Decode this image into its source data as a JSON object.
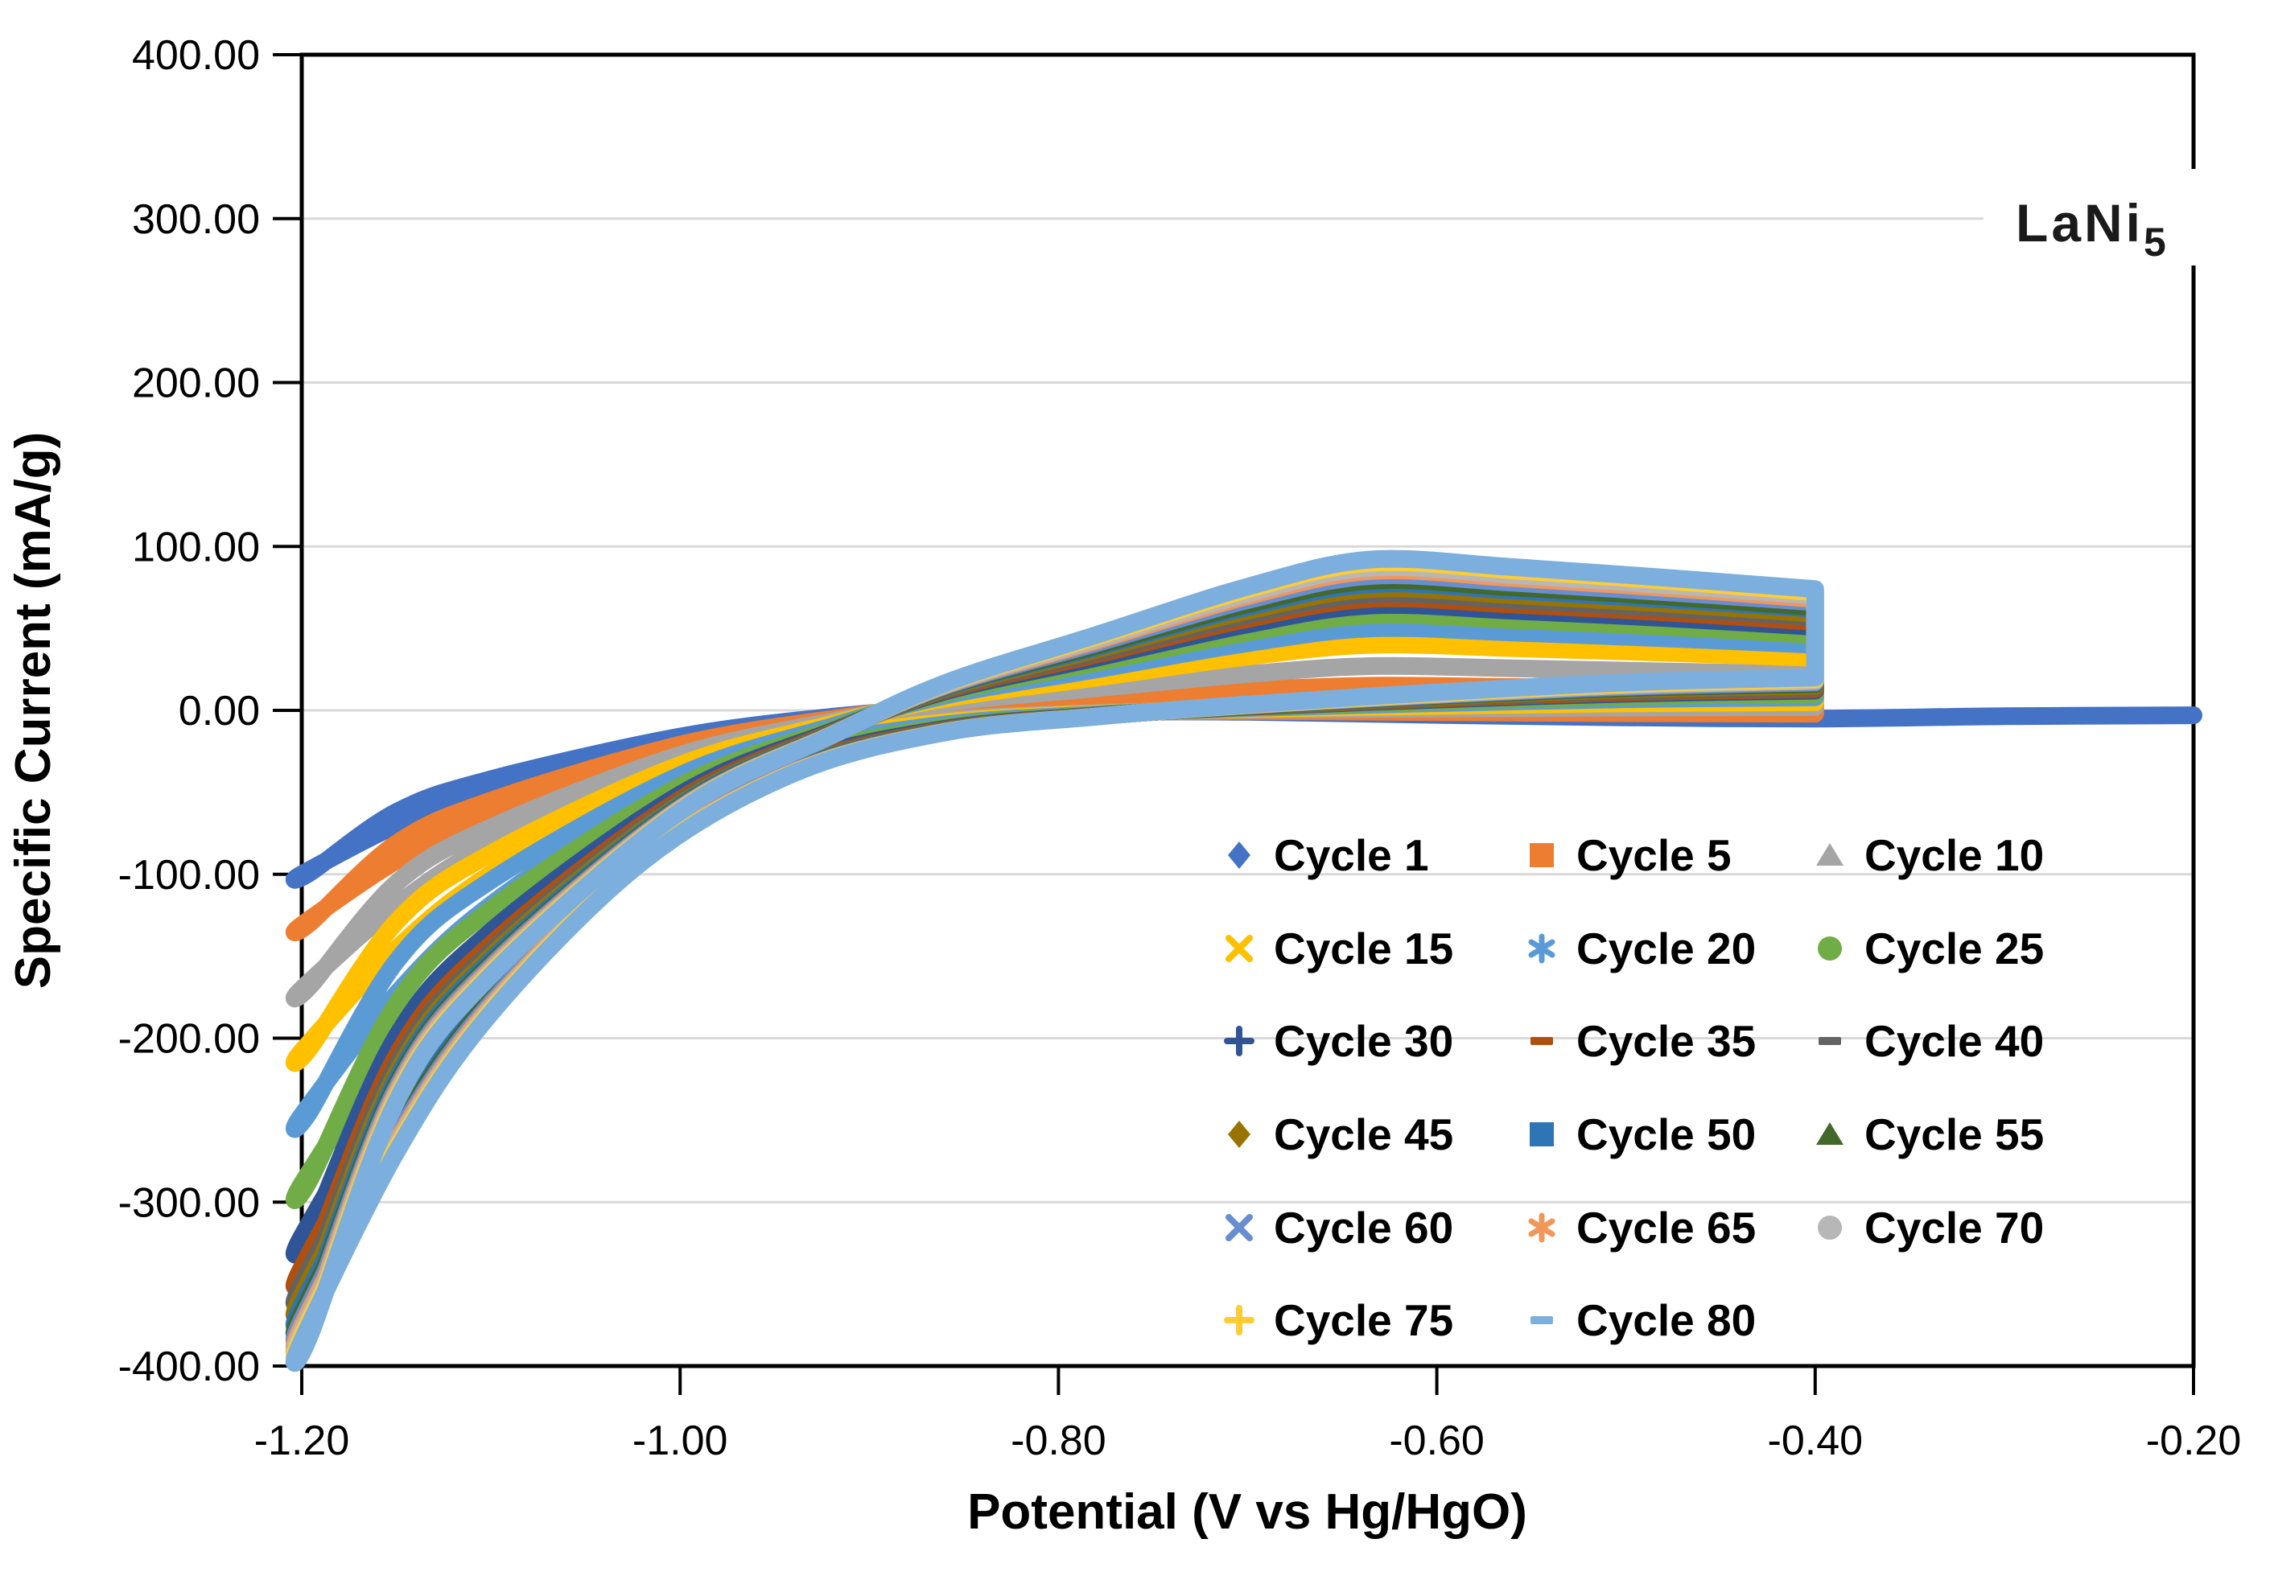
{
  "chart_data": {
    "type": "scatter",
    "description": "Cyclic voltammogram of LaNi5 electrode, 17 cycles overlaid as dense marker loops",
    "title_main": "LaNi",
    "title_sub": "5",
    "xlabel": "Potential (V vs Hg/HgO)",
    "ylabel": "Specific Current (mA/g)",
    "xlim": [
      -1.2,
      -0.2
    ],
    "ylim": [
      -400,
      400
    ],
    "x_tick_labels": [
      "-1.20",
      "-1.00",
      "-0.80",
      "-0.60",
      "-0.40",
      "-0.20"
    ],
    "x_tick_values": [
      -1.2,
      -1.0,
      -0.8,
      -0.6,
      -0.4,
      -0.2
    ],
    "y_tick_labels": [
      "400.00",
      "300.00",
      "200.00",
      "100.00",
      "0.00",
      "-100.00",
      "-200.00",
      "-300.00",
      "-400.00"
    ],
    "y_tick_values": [
      400,
      300,
      200,
      100,
      0,
      -100,
      -200,
      -300,
      -400
    ],
    "grid": "horizontal-only",
    "grid_color": "#D9D9D9",
    "axis_color": "#000000",
    "background": "#FFFFFF",
    "legend": {
      "position": "inside-lower-right",
      "columns": 3,
      "border": "none"
    },
    "loop_shape": {
      "turnaround_v": -0.4,
      "anodic_peak_v": -0.635,
      "zero_crossing_v": -0.9
    },
    "series": [
      {
        "label": "Cycle 1",
        "marker": "diamond",
        "color": "#4472C4",
        "min_current": -100,
        "peak_current": 5,
        "end_current": 4,
        "start_current": -5,
        "v_left": -1.2,
        "v_right": -0.2
      },
      {
        "label": "Cycle 5",
        "marker": "square",
        "color": "#ED7D31",
        "min_current": -131,
        "peak_current": 15,
        "end_current": 12,
        "start_current": -2,
        "v_left": -1.2,
        "v_right": -0.4
      },
      {
        "label": "Cycle 10",
        "marker": "triangle",
        "color": "#A5A5A5",
        "min_current": -170,
        "peak_current": 27,
        "end_current": 22,
        "start_current": 2,
        "v_left": -1.2,
        "v_right": -0.4
      },
      {
        "label": "Cycle 15",
        "marker": "x",
        "color": "#FFC000",
        "min_current": -208,
        "peak_current": 40,
        "end_current": 32,
        "start_current": 5,
        "v_left": -1.2,
        "v_right": -0.4
      },
      {
        "label": "Cycle 20",
        "marker": "asterisk",
        "color": "#5B9BD5",
        "min_current": -247,
        "peak_current": 50,
        "end_current": 40,
        "start_current": 8,
        "v_left": -1.2,
        "v_right": -0.4
      },
      {
        "label": "Cycle 25",
        "marker": "circle",
        "color": "#70AD47",
        "min_current": -289,
        "peak_current": 58,
        "end_current": 46,
        "start_current": 10,
        "v_left": -1.2,
        "v_right": -0.4
      },
      {
        "label": "Cycle 30",
        "marker": "plus",
        "color": "#2F5597",
        "min_current": -321,
        "peak_current": 64,
        "end_current": 51,
        "start_current": 12,
        "v_left": -1.2,
        "v_right": -0.4
      },
      {
        "label": "Cycle 35",
        "marker": "dash",
        "color": "#B05010",
        "min_current": -340,
        "peak_current": 68,
        "end_current": 54,
        "start_current": 13,
        "v_left": -1.2,
        "v_right": -0.4
      },
      {
        "label": "Cycle 40",
        "marker": "dash",
        "color": "#636363",
        "min_current": -350,
        "peak_current": 71,
        "end_current": 57,
        "start_current": 14,
        "v_left": -1.2,
        "v_right": -0.4
      },
      {
        "label": "Cycle 45",
        "marker": "diamond",
        "color": "#997300",
        "min_current": -357,
        "peak_current": 74,
        "end_current": 59,
        "start_current": 15,
        "v_left": -1.2,
        "v_right": -0.4
      },
      {
        "label": "Cycle 50",
        "marker": "square",
        "color": "#2E75B6",
        "min_current": -363,
        "peak_current": 77,
        "end_current": 62,
        "start_current": 16,
        "v_left": -1.2,
        "v_right": -0.4
      },
      {
        "label": "Cycle 55",
        "marker": "triangle",
        "color": "#43682B",
        "min_current": -368,
        "peak_current": 79,
        "end_current": 63,
        "start_current": 16,
        "v_left": -1.2,
        "v_right": -0.4
      },
      {
        "label": "Cycle 60",
        "marker": "x",
        "color": "#698ED0",
        "min_current": -372,
        "peak_current": 82,
        "end_current": 66,
        "start_current": 17,
        "v_left": -1.2,
        "v_right": -0.4
      },
      {
        "label": "Cycle 65",
        "marker": "asterisk",
        "color": "#F1975A",
        "min_current": -376,
        "peak_current": 85,
        "end_current": 68,
        "start_current": 18,
        "v_left": -1.2,
        "v_right": -0.4
      },
      {
        "label": "Cycle 70",
        "marker": "circle",
        "color": "#B7B7B7",
        "min_current": -379,
        "peak_current": 87,
        "end_current": 70,
        "start_current": 18,
        "v_left": -1.2,
        "v_right": -0.4
      },
      {
        "label": "Cycle 75",
        "marker": "plus",
        "color": "#FFCD33",
        "min_current": -382,
        "peak_current": 90,
        "end_current": 72,
        "start_current": 19,
        "v_left": -1.2,
        "v_right": -0.4
      },
      {
        "label": "Cycle 80",
        "marker": "dash",
        "color": "#7CAFDD",
        "min_current": -385,
        "peak_current": 92,
        "end_current": 74,
        "start_current": 20,
        "v_left": -1.2,
        "v_right": -0.4
      }
    ]
  }
}
